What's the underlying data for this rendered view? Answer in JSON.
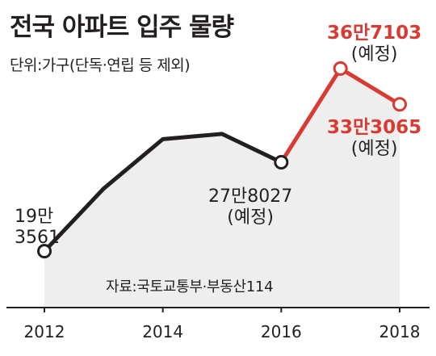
{
  "title": "전국 아파트 입주 물량",
  "unit_note": "단위:가구(단독·연립 등 제외)",
  "source": "자료:국토교통부·부동산114",
  "labels": {
    "y2012": {
      "value_line1": "19만",
      "value_line2": "3561"
    },
    "y2016": {
      "value": "27만8027",
      "note": "(예정)"
    },
    "y2017": {
      "value": "36만7103",
      "note": "(예정)"
    },
    "y2018": {
      "value": "33만3065",
      "note": "(예정)"
    }
  },
  "colors": {
    "actual": "#231f20",
    "forecast": "#d83a34",
    "area": "#eeeeee"
  },
  "chart_data": {
    "type": "line",
    "title": "전국 아파트 입주 물량",
    "ylabel": "",
    "xlabel": "",
    "x_ticks": [
      "2012",
      "2014",
      "2016",
      "2018"
    ],
    "x": [
      2012,
      2013,
      2014,
      2015,
      2016,
      2017,
      2018
    ],
    "series": [
      {
        "values": [
          193561,
          253000,
          300000,
          305000,
          278027,
          367103,
          333065
        ]
      }
    ],
    "actual_through": 2016,
    "ylim": [
      140000,
      390000
    ],
    "grid": false,
    "legend": "none"
  }
}
